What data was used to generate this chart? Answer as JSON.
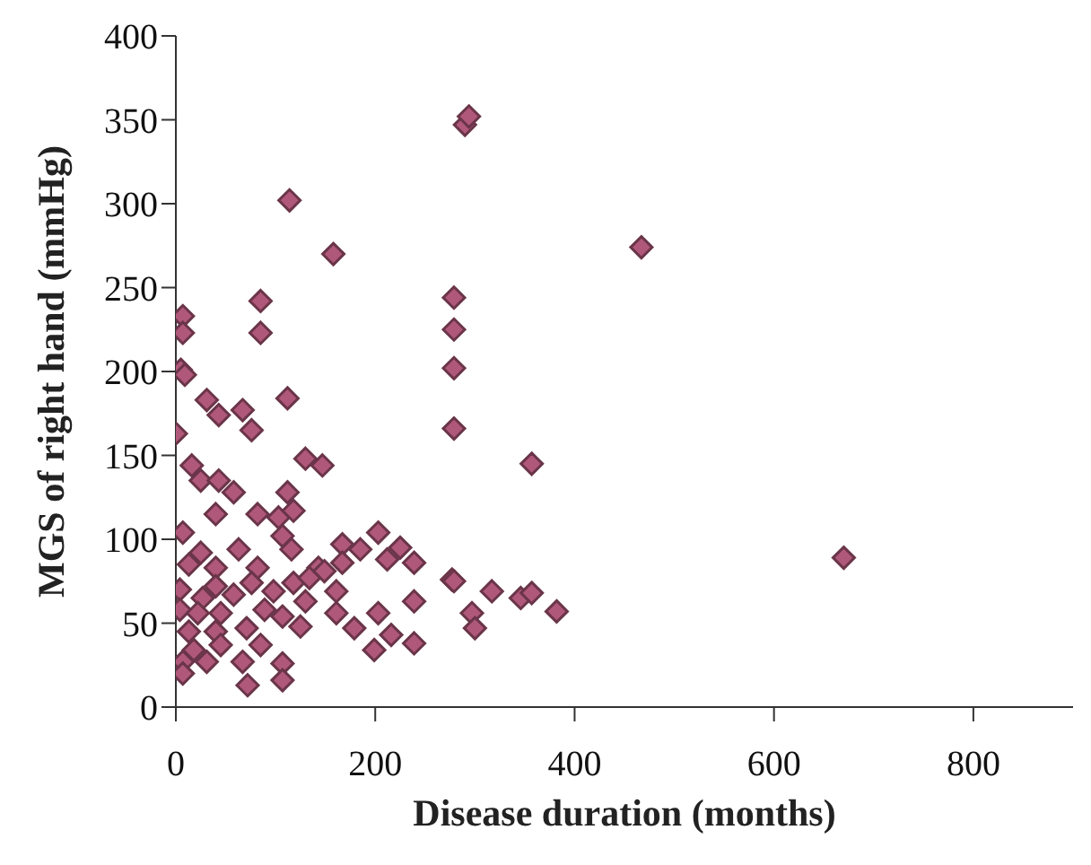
{
  "chart_data": {
    "type": "scatter",
    "xlabel": "Disease duration (months)",
    "ylabel": "MGS of right hand (mmHg)",
    "xlim": [
      0,
      900
    ],
    "xticks": [
      0,
      200,
      400,
      600,
      800
    ],
    "ylim": [
      0,
      400
    ],
    "yticks": [
      0,
      50,
      100,
      150,
      200,
      250,
      300,
      350,
      400
    ],
    "grid": false,
    "legend": false,
    "marker": "diamond",
    "series": [
      {
        "color": "#b0587a",
        "x": [
          290,
          294,
          114,
          158,
          467,
          279,
          279,
          279,
          279,
          357,
          670,
          277,
          317,
          297,
          300,
          346,
          357,
          382,
          7,
          7,
          85,
          85,
          5,
          9,
          31,
          43,
          67,
          76,
          112,
          0,
          130,
          147,
          16,
          25,
          43,
          58,
          112,
          40,
          82,
          103,
          118,
          107,
          7,
          116,
          25,
          63,
          167,
          203,
          185,
          225,
          239,
          13,
          40,
          82,
          143,
          212,
          167,
          4,
          40,
          76,
          118,
          134,
          149,
          27,
          58,
          98,
          279,
          161,
          4,
          22,
          45,
          89,
          130,
          239,
          13,
          40,
          71,
          107,
          125,
          161,
          179,
          203,
          216,
          18,
          45,
          85,
          199,
          239,
          7,
          31,
          67,
          107,
          107,
          72,
          7
        ],
        "values": [
          347,
          352,
          302,
          270,
          274,
          244,
          225,
          202,
          166,
          145,
          89,
          76,
          69,
          56,
          47,
          65,
          68,
          57,
          233,
          223,
          242,
          223,
          201,
          198,
          183,
          174,
          177,
          165,
          184,
          163,
          148,
          144,
          144,
          135,
          135,
          128,
          128,
          115,
          115,
          113,
          117,
          102,
          104,
          94,
          92,
          94,
          97,
          104,
          94,
          95,
          86,
          85,
          83,
          83,
          83,
          88,
          86,
          70,
          72,
          74,
          74,
          77,
          81,
          65,
          67,
          69,
          75,
          69,
          58,
          56,
          56,
          58,
          63,
          63,
          45,
          45,
          47,
          54,
          48,
          56,
          47,
          56,
          43,
          34,
          37,
          37,
          34,
          38,
          27,
          27,
          27,
          26,
          16,
          13,
          20
        ]
      }
    ]
  }
}
